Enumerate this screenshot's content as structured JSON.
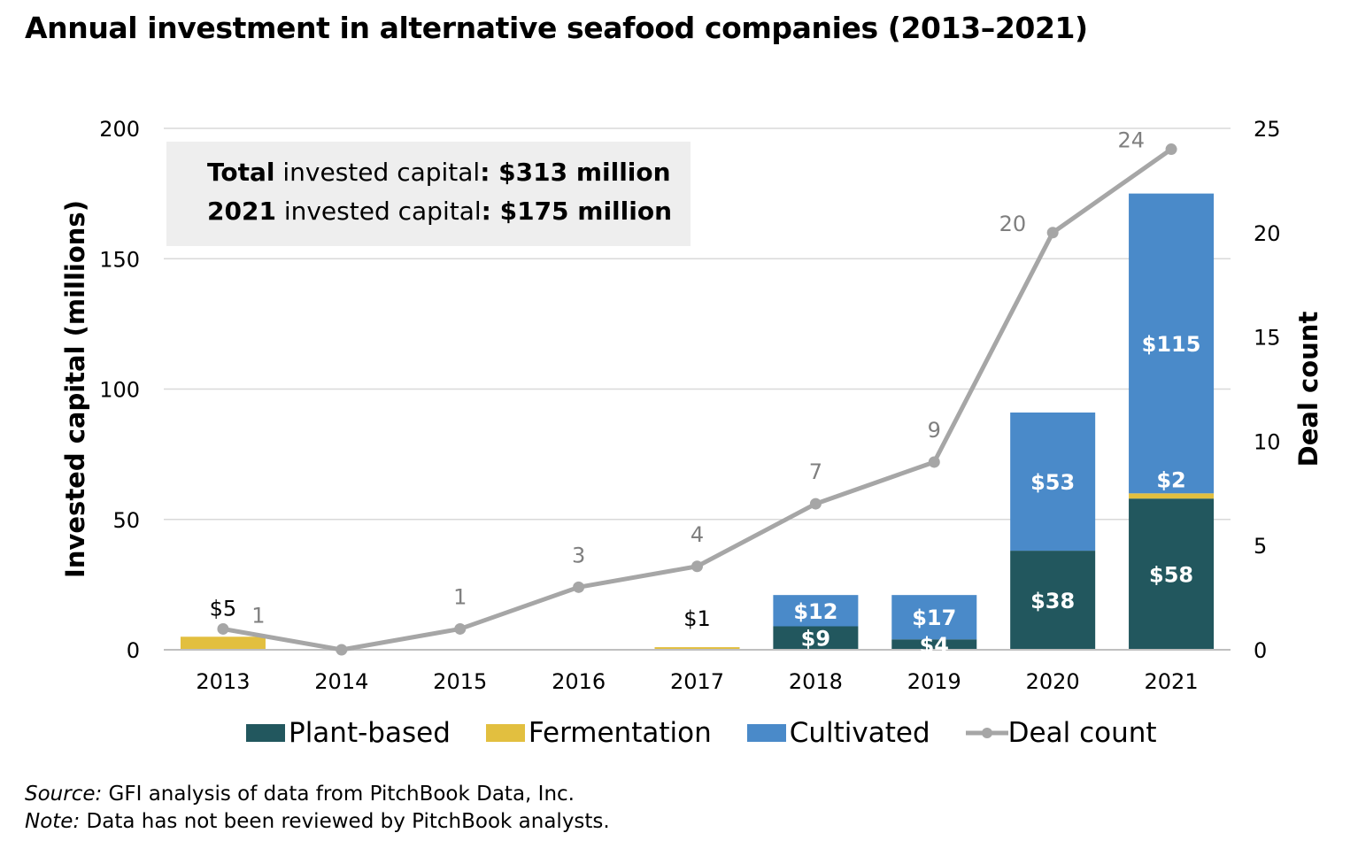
{
  "title": "Annual investment in alternative seafood companies (2013–2021)",
  "info_box": {
    "line1_bold": "Total",
    "line1_text": " invested capital",
    "line1_value": ": $313 million",
    "line2_bold": "2021",
    "line2_text": " invested capital",
    "line2_value": ": $175 million"
  },
  "chart_data": {
    "type": "bar",
    "stacked": true,
    "categories": [
      "2013",
      "2014",
      "2015",
      "2016",
      "2017",
      "2018",
      "2019",
      "2020",
      "2021"
    ],
    "series": [
      {
        "name": "Plant-based",
        "color": "#22575e",
        "values": [
          0,
          0,
          0,
          0,
          0,
          9,
          4,
          38,
          58
        ]
      },
      {
        "name": "Fermentation",
        "color": "#e2bf3f",
        "values": [
          5,
          0,
          0,
          0,
          1,
          0,
          0,
          0,
          2
        ]
      },
      {
        "name": "Cultivated",
        "color": "#4a8ac9",
        "values": [
          0,
          0,
          0,
          0,
          0,
          12,
          17,
          53,
          115
        ]
      }
    ],
    "line_series": {
      "name": "Deal count",
      "color": "#a6a6a6",
      "axis": "right",
      "values": [
        1,
        0,
        1,
        3,
        4,
        7,
        9,
        20,
        24
      ]
    },
    "segment_labels": [
      {
        "category": "2013",
        "series": "Fermentation",
        "text": "$5",
        "style": "above"
      },
      {
        "category": "2017",
        "series": "Fermentation",
        "text": "$1",
        "style": "above"
      },
      {
        "category": "2018",
        "series": "Plant-based",
        "text": "$9",
        "style": "inside"
      },
      {
        "category": "2018",
        "series": "Cultivated",
        "text": "$12",
        "style": "inside"
      },
      {
        "category": "2019",
        "series": "Plant-based",
        "text": "$4",
        "style": "inside"
      },
      {
        "category": "2019",
        "series": "Cultivated",
        "text": "$17",
        "style": "inside"
      },
      {
        "category": "2020",
        "series": "Plant-based",
        "text": "$38",
        "style": "inside"
      },
      {
        "category": "2020",
        "series": "Cultivated",
        "text": "$53",
        "style": "inside"
      },
      {
        "category": "2021",
        "series": "Plant-based",
        "text": "$58",
        "style": "inside"
      },
      {
        "category": "2021",
        "series": "Fermentation",
        "text": "$2",
        "style": "inside-above"
      },
      {
        "category": "2021",
        "series": "Cultivated",
        "text": "$115",
        "style": "inside"
      }
    ],
    "deal_labels": [
      "1",
      "",
      "1",
      "3",
      "4",
      "7",
      "9",
      "20",
      "24"
    ],
    "y_left": {
      "label": "Invested capital (millions)",
      "min": 0,
      "max": 200,
      "ticks": [
        0,
        50,
        100,
        150,
        200
      ]
    },
    "y_right": {
      "label": "Deal count",
      "min": 0,
      "max": 25,
      "ticks": [
        0,
        5,
        10,
        15,
        20,
        25
      ]
    },
    "grid": true,
    "legend": [
      "Plant-based",
      "Fermentation",
      "Cultivated",
      "Deal count"
    ],
    "legend_position": "bottom"
  },
  "footer": {
    "source_label": "Source:",
    "source_text": " GFI analysis of data from PitchBook Data, Inc.",
    "note_label": "Note:",
    "note_text": " Data has not been reviewed by PitchBook analysts."
  }
}
